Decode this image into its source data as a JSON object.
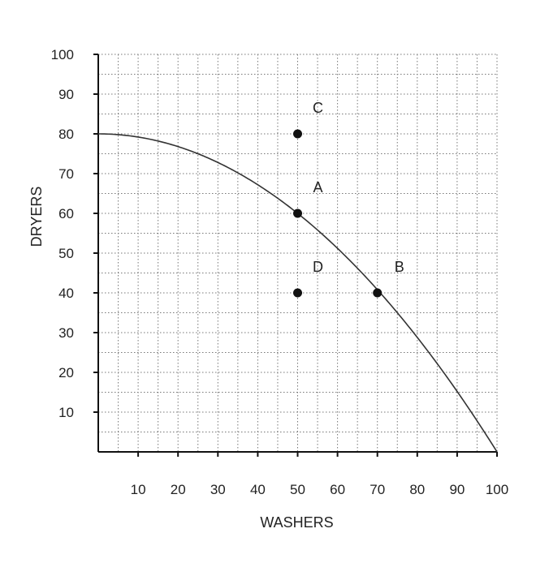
{
  "chart_data": {
    "type": "line",
    "xlabel": "WASHERS",
    "ylabel": "DRYERS",
    "xlim": [
      0,
      100
    ],
    "ylim": [
      0,
      100
    ],
    "x_ticks": [
      "10",
      "20",
      "30",
      "40",
      "50",
      "60",
      "70",
      "80",
      "90",
      "100"
    ],
    "y_ticks": [
      "10",
      "20",
      "30",
      "40",
      "50",
      "60",
      "70",
      "80",
      "90",
      "100"
    ],
    "grid": true,
    "grid_style": "dotted",
    "series": [
      {
        "x": [
          0,
          10,
          20,
          30,
          40,
          50,
          60,
          70,
          80,
          90,
          100
        ],
        "y": [
          80,
          79.2,
          76.8,
          72.8,
          67.2,
          60,
          51.2,
          40.8,
          28.8,
          15.2,
          0
        ]
      }
    ],
    "points": [
      {
        "label": "A",
        "x": 50,
        "y": 60
      },
      {
        "label": "B",
        "x": 70,
        "y": 40
      },
      {
        "label": "C",
        "x": 50,
        "y": 80
      },
      {
        "label": "D",
        "x": 50,
        "y": 40
      }
    ],
    "colors": {
      "axis": "#111111",
      "grid": "#777777",
      "curve": "#333333",
      "point": "#111111"
    }
  }
}
